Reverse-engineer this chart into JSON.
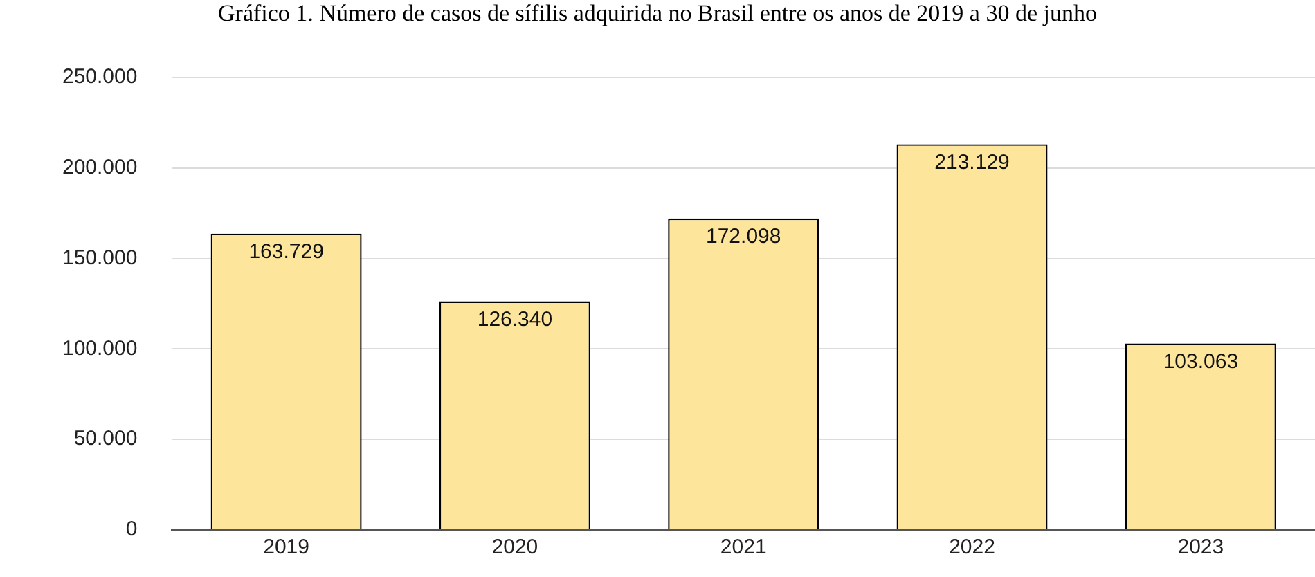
{
  "chart_data": {
    "type": "bar",
    "title": "Gráfico 1. Número de casos de sífilis adquirida no Brasil entre os anos de 2019 a 30 de junho",
    "categories": [
      "2019",
      "2020",
      "2021",
      "2022",
      "2023"
    ],
    "values": [
      163729,
      126340,
      172098,
      213129,
      103063
    ],
    "value_labels": [
      "163.729",
      "126.340",
      "172.098",
      "213.129",
      "103.063"
    ],
    "color": "#fde59c",
    "ylim": [
      0,
      250000
    ],
    "yticks": [
      {
        "value": 0,
        "label": "0"
      },
      {
        "value": 50000,
        "label": "50.000"
      },
      {
        "value": 100000,
        "label": "100.000"
      },
      {
        "value": 150000,
        "label": "150.000"
      },
      {
        "value": 200000,
        "label": "200.000"
      },
      {
        "value": 250000,
        "label": "250.000"
      }
    ],
    "grid": "y"
  }
}
